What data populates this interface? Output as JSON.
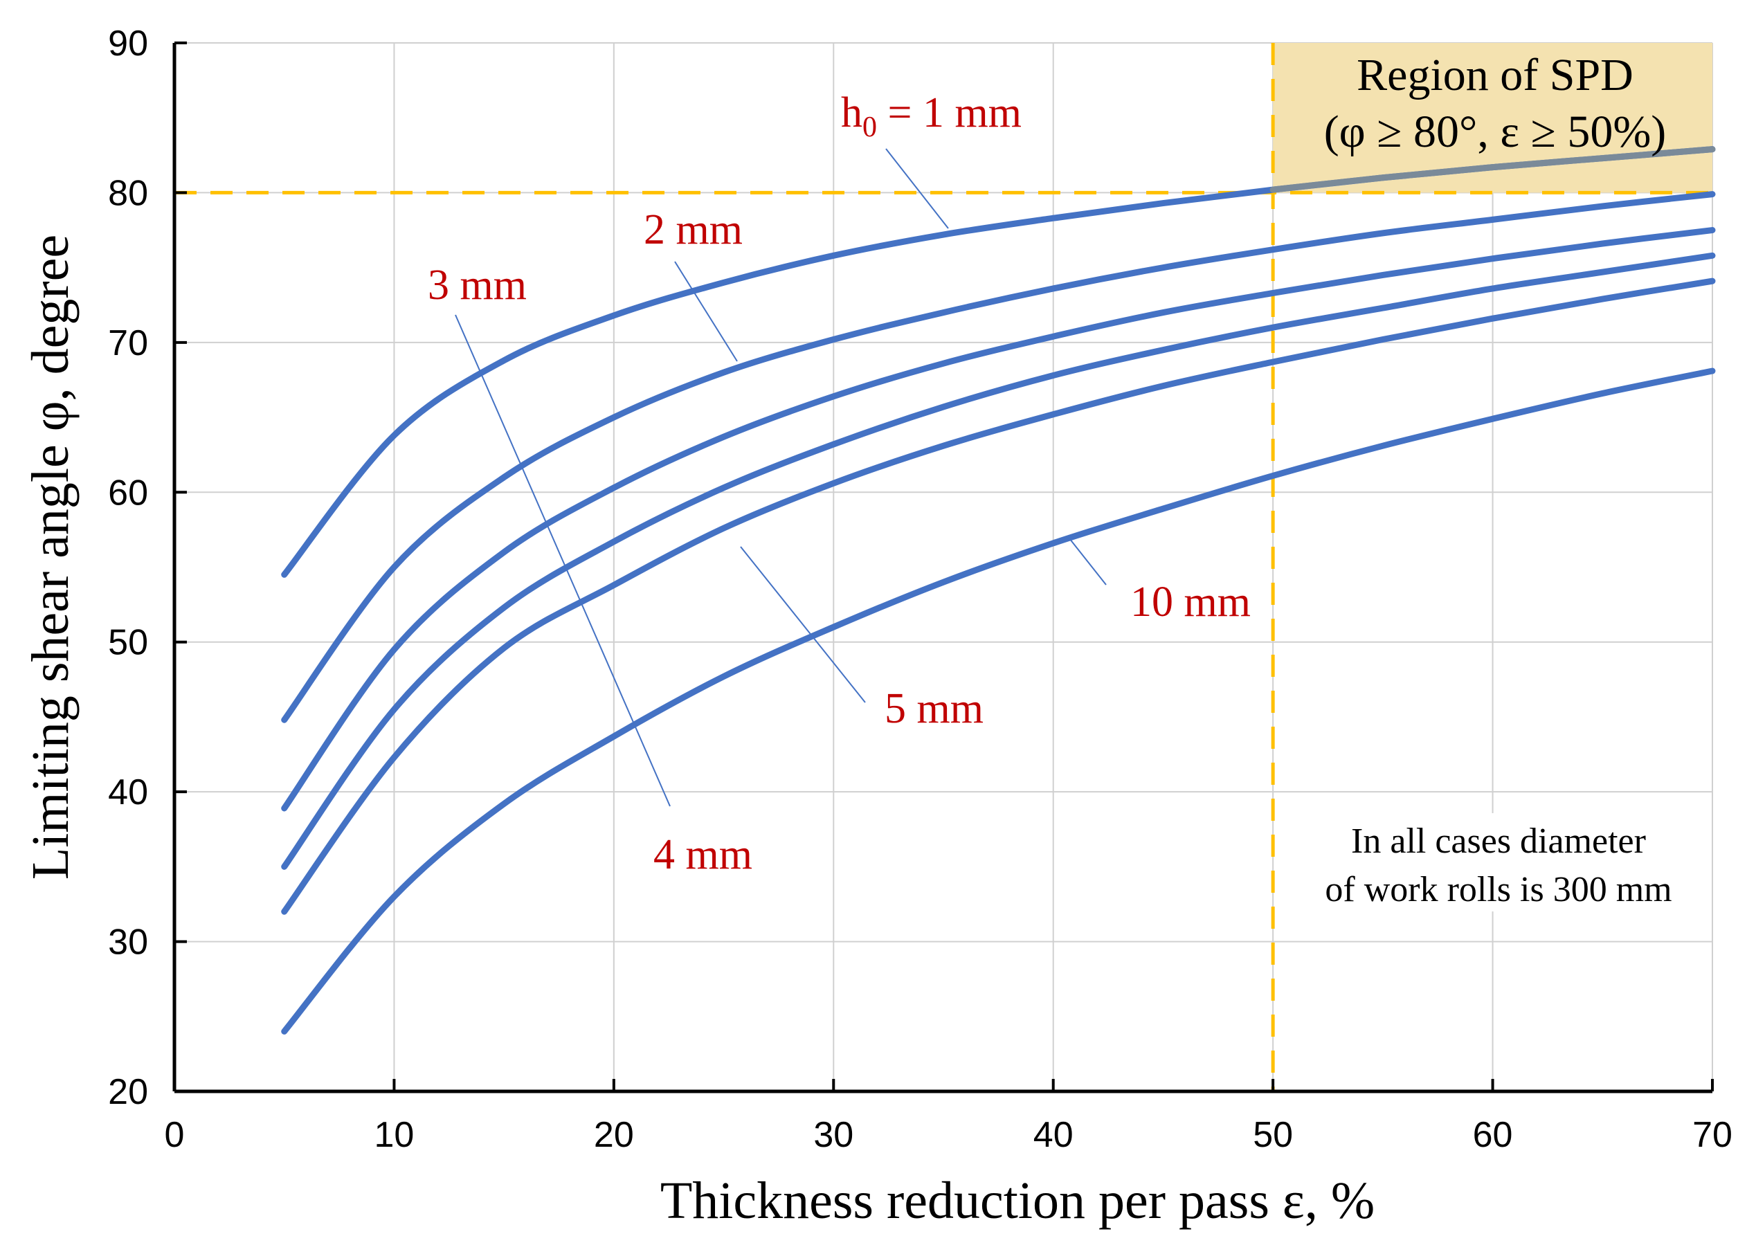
{
  "chart_data": {
    "type": "line",
    "title": "",
    "xlabel": "Thickness reduction per pass ε, %",
    "ylabel": "Limiting shear angle φ, degree",
    "xlim": [
      0,
      70
    ],
    "ylim": [
      20,
      90
    ],
    "xticks": [
      "0",
      "10",
      "20",
      "30",
      "40",
      "50",
      "60",
      "70"
    ],
    "yticks": [
      "20",
      "30",
      "40",
      "50",
      "60",
      "70",
      "80",
      "90"
    ],
    "grid": true,
    "series_color": "#4472C4",
    "label_color": "#C00000",
    "threshold_color": "#FFC000",
    "x": [
      5,
      10,
      15,
      20,
      25,
      30,
      35,
      40,
      45,
      50,
      55,
      60,
      65,
      70
    ],
    "series": [
      {
        "name": "h0 = 1 mm",
        "label": "1 mm",
        "values": [
          54.5,
          63.8,
          68.8,
          71.8,
          74.0,
          75.8,
          77.2,
          78.3,
          79.3,
          80.2,
          81.0,
          81.7,
          82.3,
          82.9
        ]
      },
      {
        "name": "2 mm",
        "label": "2 mm",
        "values": [
          44.8,
          55.0,
          61.0,
          65.0,
          68.0,
          70.2,
          72.0,
          73.6,
          75.0,
          76.2,
          77.3,
          78.2,
          79.1,
          79.9
        ]
      },
      {
        "name": "3 mm",
        "label": "3 mm",
        "values": [
          38.9,
          49.5,
          56.0,
          60.3,
          63.7,
          66.4,
          68.6,
          70.4,
          72.0,
          73.3,
          74.5,
          75.6,
          76.6,
          77.5
        ]
      },
      {
        "name": "4 mm",
        "label": "4 mm",
        "values": [
          35.0,
          45.5,
          52.3,
          56.7,
          60.3,
          63.2,
          65.7,
          67.8,
          69.5,
          71.0,
          72.3,
          73.6,
          74.7,
          75.8
        ]
      },
      {
        "name": "5 mm",
        "label": "5 mm",
        "values": [
          32.0,
          42.3,
          49.6,
          53.8,
          57.6,
          60.6,
          63.1,
          65.2,
          67.1,
          68.7,
          70.2,
          71.6,
          72.9,
          74.1
        ]
      },
      {
        "name": "10 mm",
        "label": "10 mm",
        "values": [
          24.0,
          33.0,
          39.2,
          43.7,
          47.7,
          51.0,
          54.0,
          56.6,
          58.9,
          61.1,
          63.1,
          64.9,
          66.6,
          68.1
        ]
      }
    ],
    "threshold": {
      "phi": 80,
      "epsilon": 50
    },
    "region_box": {
      "title": "Region of SPD",
      "condition": "(φ ≥ 80°, ε ≥ 50%)",
      "fill": "#F4E2B0"
    },
    "annotations": {
      "h1_prefix": "h",
      "h1_subscript": "0",
      "h1_suffix": " = 1 mm",
      "label_2mm": "2 mm",
      "label_3mm": "3 mm",
      "label_4mm": "4 mm",
      "label_5mm": "5 mm",
      "label_10mm": "10 mm",
      "note_line1": "In all cases diameter",
      "note_line2": "of work rolls is 300 mm"
    }
  }
}
